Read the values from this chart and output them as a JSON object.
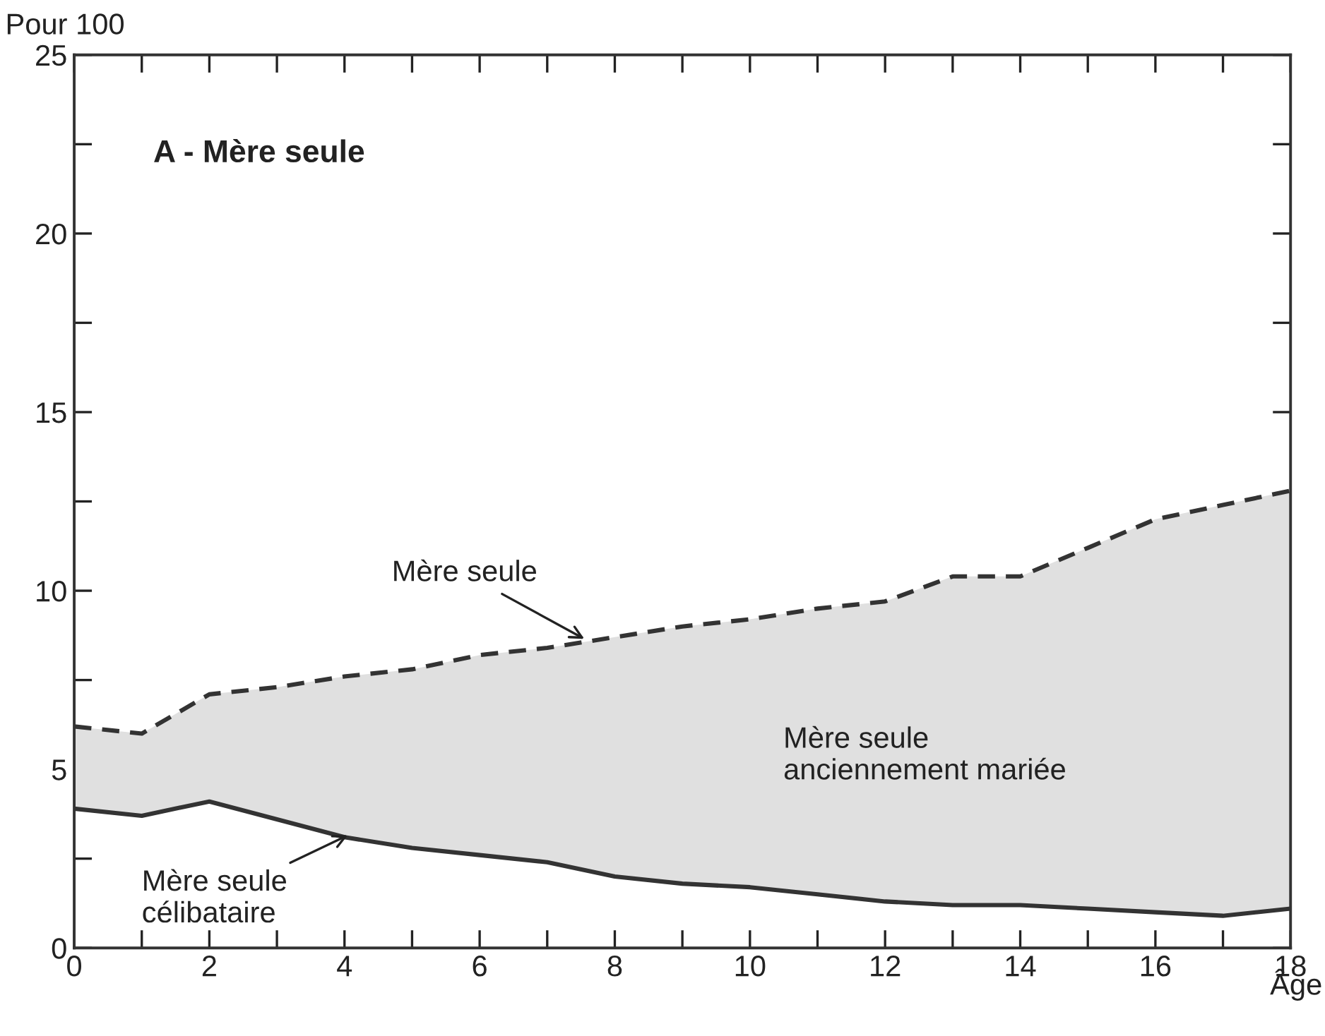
{
  "chart_data": {
    "type": "line",
    "title": "A - Mère seule",
    "xlabel": "Âge",
    "ylabel": "Pour 100",
    "x": [
      0,
      1,
      2,
      3,
      4,
      5,
      6,
      7,
      8,
      9,
      10,
      11,
      12,
      13,
      14,
      15,
      16,
      17,
      18
    ],
    "series": [
      {
        "color": "#333333",
        "line_style": "solid",
        "values": [
          3.9,
          3.7,
          4.1,
          3.6,
          3.1,
          2.8,
          2.6,
          2.4,
          2.0,
          1.8,
          1.7,
          1.5,
          1.3,
          1.2,
          1.2,
          1.1,
          1.0,
          0.9,
          1.1
        ]
      },
      {
        "type": "area",
        "color": "#e0e0e0",
        "line_style": "dashed",
        "values": [
          6.2,
          6.0,
          7.1,
          7.3,
          7.6,
          7.8,
          8.2,
          8.4,
          8.7,
          9.0,
          9.2,
          9.5,
          9.7,
          10.4,
          10.4,
          11.2,
          12.0,
          12.4,
          12.8
        ]
      }
    ],
    "xlim": [
      0,
      18
    ],
    "ylim": [
      0,
      25
    ],
    "xticks": [
      0,
      {
        "value": 1,
        "label": null
      },
      2,
      {
        "value": 3,
        "label": null
      },
      4,
      {
        "value": 5,
        "label": null
      },
      6,
      {
        "value": 7,
        "label": null
      },
      8,
      {
        "value": 9,
        "label": null
      },
      10,
      {
        "value": 11,
        "label": null
      },
      12,
      {
        "value": 13,
        "label": null
      },
      14,
      {
        "value": 15,
        "label": null
      },
      16,
      {
        "value": 17,
        "label": null
      },
      18
    ],
    "yticks": [
      0,
      {
        "value": 2.5,
        "label": null
      },
      5,
      {
        "value": 7.5,
        "label": null
      },
      10,
      {
        "value": 12.5,
        "label": null
      },
      15,
      {
        "value": 17.5,
        "label": null
      },
      20,
      {
        "value": 22.5,
        "label": null
      },
      25
    ],
    "grid": false,
    "legend": false,
    "marker": "none",
    "annotations": [
      {
        "text": "Mère seule",
        "x": 7.6,
        "y": 8.6
      },
      {
        "text": "Mère seule\ncélibataire",
        "x": 4.1,
        "y": 3.2
      },
      "Mère seule\nanciennement mariée"
    ]
  }
}
